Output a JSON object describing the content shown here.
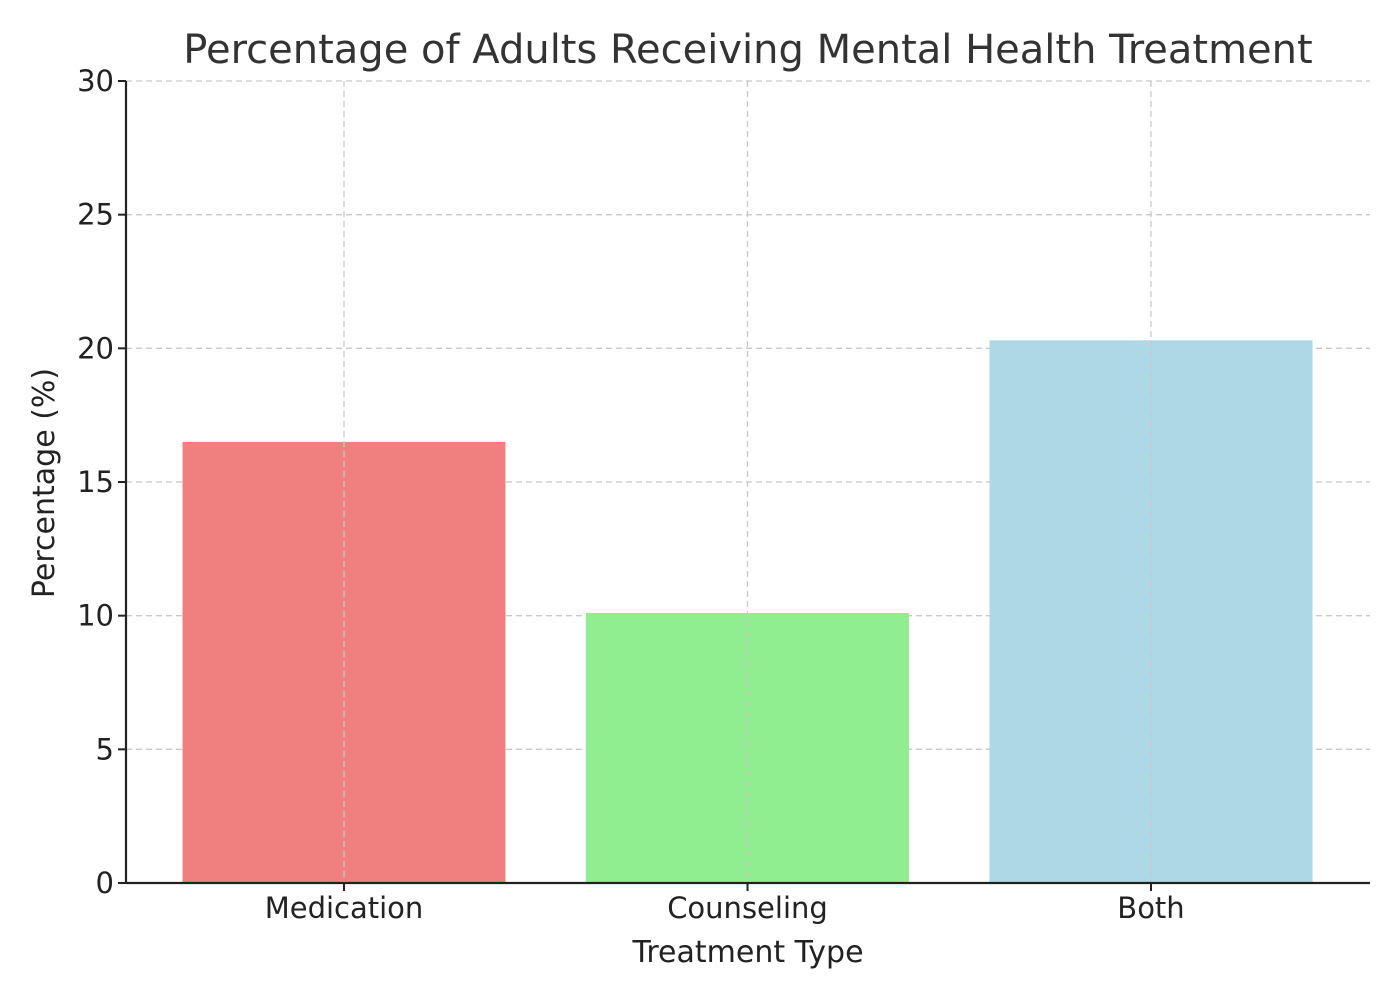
{
  "chart_data": {
    "type": "bar",
    "title": "Percentage of Adults Receiving Mental Health Treatment",
    "xlabel": "Treatment Type",
    "ylabel": "Percentage (%)",
    "categories": [
      "Medication",
      "Counseling",
      "Both"
    ],
    "values": [
      16.5,
      10.1,
      20.3
    ],
    "colors": [
      "#f08080",
      "#90ee90",
      "#add8e6"
    ],
    "ylim": [
      0,
      30
    ],
    "yticks": [
      0,
      5,
      10,
      15,
      20,
      25,
      30
    ],
    "grid": true
  }
}
